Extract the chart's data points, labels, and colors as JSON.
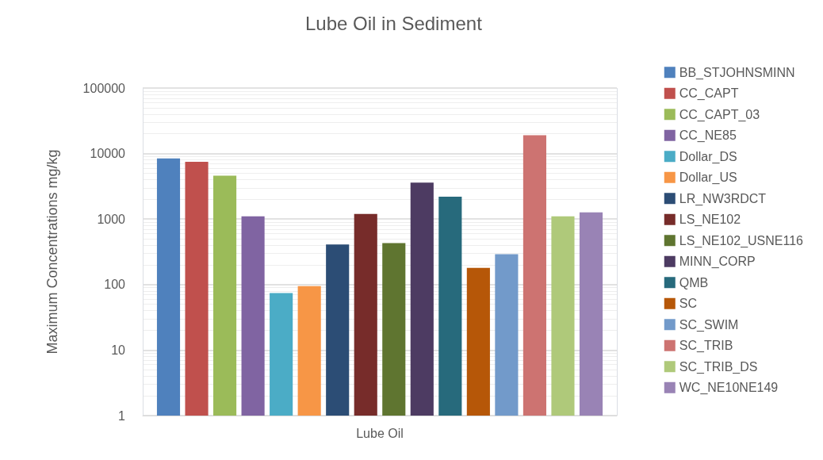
{
  "chart_data": {
    "type": "bar",
    "title": "Lube Oil in Sediment",
    "ylabel": "Maximum Concentrations mg/kg",
    "categories": [
      "Lube Oil"
    ],
    "series": [
      {
        "name": "BB_STJOHNSMINN",
        "color": "#4f81bd",
        "values": [
          8400
        ]
      },
      {
        "name": "CC_CAPT",
        "color": "#c0504d",
        "values": [
          7500
        ]
      },
      {
        "name": "CC_CAPT_03",
        "color": "#9bbb59",
        "values": [
          4600
        ]
      },
      {
        "name": "CC_NE85",
        "color": "#8064a2",
        "values": [
          1100
        ]
      },
      {
        "name": "Dollar_DS",
        "color": "#4bacc6",
        "values": [
          74
        ]
      },
      {
        "name": "Dollar_US",
        "color": "#f79646",
        "values": [
          95
        ]
      },
      {
        "name": "LR_NW3RDCT",
        "color": "#2c4d75",
        "values": [
          410
        ]
      },
      {
        "name": "LS_NE102",
        "color": "#772c2a",
        "values": [
          1200
        ]
      },
      {
        "name": "LS_NE102_USNE116",
        "color": "#5f7530",
        "values": [
          430
        ]
      },
      {
        "name": "MINN_CORP",
        "color": "#4d3b62",
        "values": [
          3600
        ]
      },
      {
        "name": "QMB",
        "color": "#276a7c",
        "values": [
          2200
        ]
      },
      {
        "name": "SC",
        "color": "#b65708",
        "values": [
          180
        ]
      },
      {
        "name": "SC_SWIM",
        "color": "#729aca",
        "values": [
          290
        ]
      },
      {
        "name": "SC_TRIB",
        "color": "#cd7371",
        "values": [
          19000
        ]
      },
      {
        "name": "SC_TRIB_DS",
        "color": "#afc97a",
        "values": [
          1100
        ]
      },
      {
        "name": "WC_NE10NE149",
        "color": "#9983b5",
        "values": [
          1270
        ]
      }
    ],
    "ylim": [
      1,
      100000
    ],
    "yticks": [
      1,
      10,
      100,
      1000,
      10000,
      100000
    ],
    "log": true,
    "grid": true,
    "legend": "right"
  }
}
